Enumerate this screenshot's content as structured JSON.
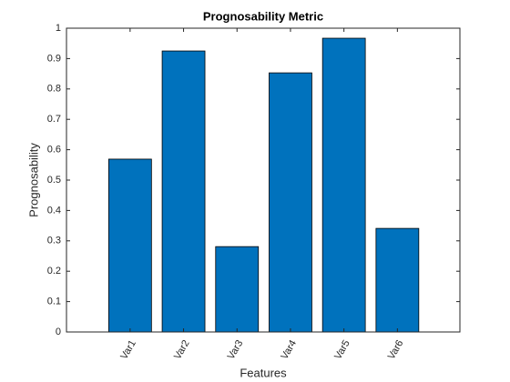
{
  "chart_data": {
    "type": "bar",
    "title": "Prognosability Metric",
    "xlabel": "Features",
    "ylabel": "Prognosability",
    "categories": [
      "Var1",
      "Var2",
      "Var3",
      "Var4",
      "Var5",
      "Var6"
    ],
    "values": [
      0.569,
      0.925,
      0.281,
      0.853,
      0.967,
      0.341
    ],
    "color": "#0072bd",
    "ylim": [
      0,
      1
    ],
    "yticks": [
      0,
      0.1,
      0.2,
      0.3,
      0.4,
      0.5,
      0.6,
      0.7,
      0.8,
      0.9,
      1
    ],
    "grid": false
  }
}
